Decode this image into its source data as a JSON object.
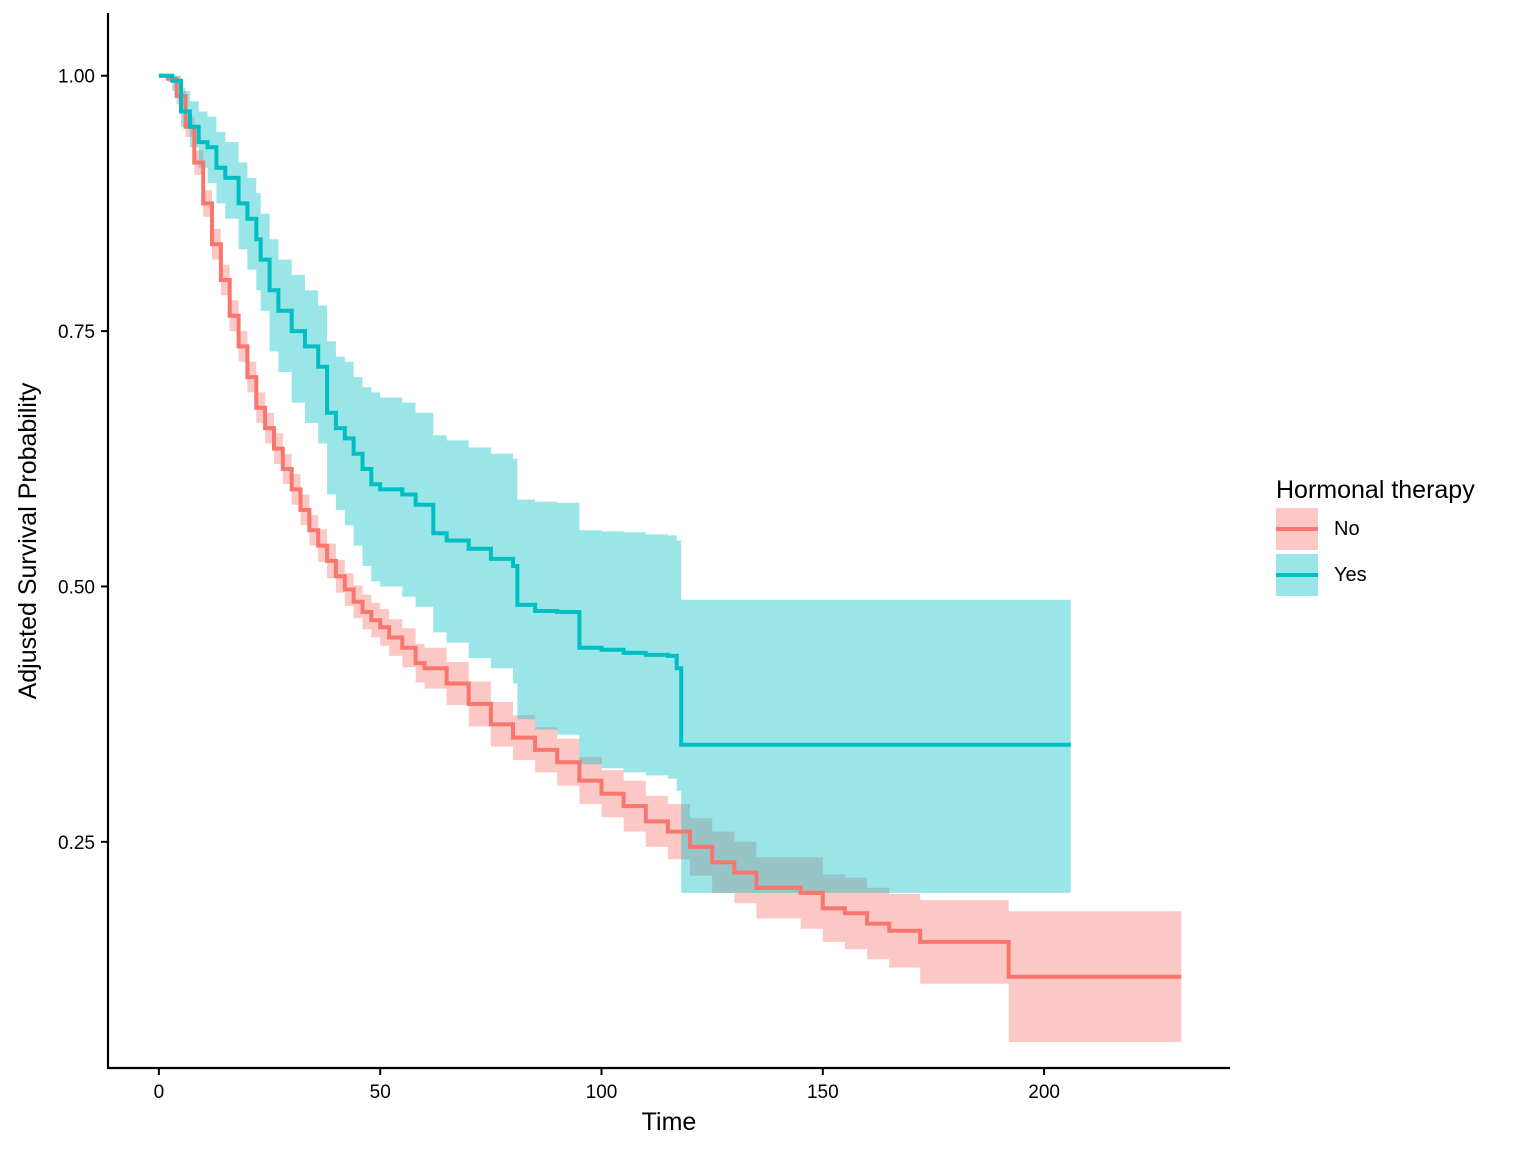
{
  "chart_data": {
    "type": "line",
    "subtype": "step-survival-with-confidence-bands",
    "title": "",
    "xlabel": "Time",
    "ylabel": "Adjusted Survival Probability",
    "xlim": [
      -11.5,
      242
    ],
    "ylim": [
      0.0286,
      1.0614
    ],
    "x_ticks": [
      0,
      50,
      100,
      150,
      200
    ],
    "x_tick_labels": [
      "0",
      "50",
      "100",
      "150",
      "200"
    ],
    "y_ticks": [
      0.25,
      0.5,
      0.75,
      1.0
    ],
    "y_tick_labels": [
      "0.25",
      "0.50",
      "0.75",
      "1.00"
    ],
    "grid": false,
    "legend": {
      "title": "Hormonal therapy",
      "position": "right"
    },
    "series": [
      {
        "name": "No",
        "color": "#F8766D",
        "band_color": "#F8766D",
        "band_opacity": 0.4,
        "x": [
          0,
          2,
          4,
          6,
          8,
          10,
          12,
          14,
          16,
          18,
          20,
          22,
          24,
          26,
          28,
          30,
          32,
          34,
          36,
          38,
          40,
          42,
          44,
          46,
          48,
          50,
          52,
          55,
          58,
          60,
          65,
          70,
          75,
          80,
          85,
          90,
          95,
          100,
          105,
          110,
          115,
          120,
          125,
          130,
          135,
          140,
          145,
          150,
          155,
          160,
          165,
          172,
          180,
          192,
          205,
          220,
          231
        ],
        "y": [
          1.0,
          0.997,
          0.98,
          0.95,
          0.915,
          0.875,
          0.835,
          0.8,
          0.765,
          0.735,
          0.705,
          0.675,
          0.655,
          0.635,
          0.615,
          0.595,
          0.575,
          0.555,
          0.54,
          0.525,
          0.51,
          0.497,
          0.485,
          0.475,
          0.467,
          0.46,
          0.45,
          0.44,
          0.425,
          0.42,
          0.405,
          0.385,
          0.365,
          0.352,
          0.34,
          0.328,
          0.31,
          0.297,
          0.285,
          0.27,
          0.26,
          0.245,
          0.23,
          0.22,
          0.205,
          0.205,
          0.2,
          0.185,
          0.18,
          0.17,
          0.163,
          0.152,
          0.152,
          0.118,
          0.118,
          0.118,
          0.118
        ],
        "lower": [
          1.0,
          0.994,
          0.972,
          0.94,
          0.903,
          0.862,
          0.82,
          0.785,
          0.75,
          0.72,
          0.69,
          0.66,
          0.64,
          0.62,
          0.6,
          0.58,
          0.56,
          0.54,
          0.524,
          0.508,
          0.494,
          0.481,
          0.469,
          0.458,
          0.45,
          0.442,
          0.432,
          0.421,
          0.406,
          0.4,
          0.384,
          0.363,
          0.343,
          0.33,
          0.318,
          0.305,
          0.287,
          0.274,
          0.26,
          0.245,
          0.233,
          0.217,
          0.2,
          0.19,
          0.175,
          0.175,
          0.165,
          0.152,
          0.145,
          0.135,
          0.127,
          0.111,
          0.111,
          0.054,
          0.054,
          0.054,
          0.054
        ],
        "upper": [
          1.0,
          1.0,
          0.988,
          0.96,
          0.927,
          0.888,
          0.85,
          0.815,
          0.78,
          0.75,
          0.72,
          0.69,
          0.67,
          0.65,
          0.63,
          0.61,
          0.59,
          0.57,
          0.556,
          0.542,
          0.526,
          0.513,
          0.501,
          0.492,
          0.484,
          0.478,
          0.468,
          0.459,
          0.444,
          0.44,
          0.426,
          0.407,
          0.387,
          0.374,
          0.362,
          0.351,
          0.333,
          0.32,
          0.31,
          0.295,
          0.287,
          0.273,
          0.26,
          0.25,
          0.235,
          0.235,
          0.235,
          0.218,
          0.215,
          0.205,
          0.199,
          0.193,
          0.193,
          0.182,
          0.182,
          0.182,
          0.182
        ]
      },
      {
        "name": "Yes",
        "color": "#00BFC4",
        "band_color": "#00BFC4",
        "band_opacity": 0.4,
        "x": [
          0,
          3,
          5,
          7,
          9,
          11,
          13,
          15,
          18,
          20,
          22,
          23,
          25,
          27,
          30,
          33,
          36,
          37,
          38,
          40,
          42,
          44,
          46,
          48,
          50,
          55,
          58,
          61,
          62,
          65,
          70,
          75,
          80,
          81,
          85,
          90,
          94,
          95,
          100,
          105,
          110,
          115,
          117,
          118,
          130,
          150,
          180,
          206
        ],
        "y": [
          1.0,
          0.995,
          0.965,
          0.95,
          0.935,
          0.93,
          0.91,
          0.9,
          0.875,
          0.86,
          0.84,
          0.82,
          0.79,
          0.77,
          0.75,
          0.735,
          0.715,
          0.715,
          0.67,
          0.655,
          0.645,
          0.63,
          0.615,
          0.6,
          0.595,
          0.59,
          0.58,
          0.58,
          0.552,
          0.545,
          0.537,
          0.527,
          0.52,
          0.482,
          0.476,
          0.475,
          0.475,
          0.44,
          0.438,
          0.435,
          0.433,
          0.432,
          0.42,
          0.345,
          0.345,
          0.345,
          0.345,
          0.345
        ],
        "lower": [
          1.0,
          0.985,
          0.95,
          0.93,
          0.91,
          0.895,
          0.875,
          0.86,
          0.83,
          0.81,
          0.79,
          0.77,
          0.73,
          0.71,
          0.68,
          0.66,
          0.64,
          0.64,
          0.59,
          0.575,
          0.56,
          0.54,
          0.52,
          0.505,
          0.5,
          0.49,
          0.48,
          0.48,
          0.455,
          0.445,
          0.43,
          0.42,
          0.405,
          0.37,
          0.36,
          0.355,
          0.355,
          0.326,
          0.322,
          0.318,
          0.315,
          0.312,
          0.3,
          0.2,
          0.2,
          0.2,
          0.2,
          0.2
        ],
        "upper": [
          1.0,
          1.0,
          0.985,
          0.975,
          0.965,
          0.96,
          0.945,
          0.935,
          0.915,
          0.9,
          0.885,
          0.865,
          0.84,
          0.82,
          0.805,
          0.79,
          0.775,
          0.775,
          0.74,
          0.725,
          0.72,
          0.705,
          0.695,
          0.69,
          0.685,
          0.68,
          0.67,
          0.67,
          0.648,
          0.643,
          0.636,
          0.63,
          0.625,
          0.585,
          0.583,
          0.582,
          0.582,
          0.555,
          0.554,
          0.553,
          0.551,
          0.55,
          0.545,
          0.487,
          0.487,
          0.487,
          0.487,
          0.487
        ]
      }
    ]
  }
}
